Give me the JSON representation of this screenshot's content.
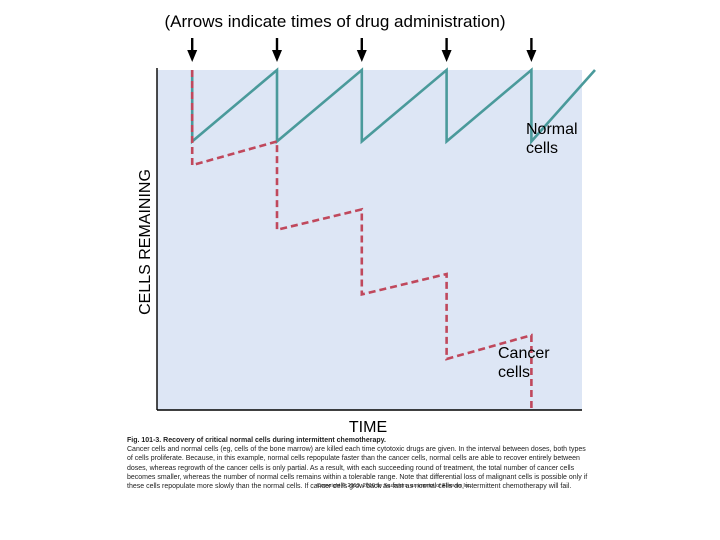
{
  "chart_data": {
    "type": "line",
    "title": "(Arrows indicate times of drug administration)",
    "xlabel": "TIME",
    "ylabel": "CELLS REMAINING",
    "dose_times": [
      0.05,
      0.25,
      0.45,
      0.65,
      0.85
    ],
    "xlim": [
      0,
      1
    ],
    "ylim": [
      0,
      1
    ],
    "grid": false,
    "series": [
      {
        "name": "Normal cells",
        "label_lines": [
          "Normal",
          "cells"
        ],
        "style": "solid",
        "color": "#4a9a9b",
        "x": [
          0.05,
          0.05,
          0.25,
          0.25,
          0.45,
          0.45,
          0.65,
          0.65,
          0.85,
          0.85,
          1.0
        ],
        "y": [
          1.0,
          0.79,
          1.0,
          0.79,
          1.0,
          0.79,
          1.0,
          0.79,
          1.0,
          0.79,
          1.0
        ]
      },
      {
        "name": "Cancer cells",
        "label_lines": [
          "Cancer",
          "cells"
        ],
        "style": "dashed",
        "color": "#c0485c",
        "x": [
          0.05,
          0.05,
          0.25,
          0.25,
          0.45,
          0.45,
          0.65,
          0.65,
          0.85,
          0.85
        ],
        "y": [
          1.0,
          0.72,
          0.79,
          0.53,
          0.59,
          0.34,
          0.4,
          0.15,
          0.22,
          0.0
        ]
      }
    ],
    "colors": {
      "plot_background": "#dde6f5",
      "axis": "#000000",
      "arrow": "#000000"
    }
  },
  "caption": {
    "title": "Fig. 101-3. Recovery of critical normal cells during intermittent chemotherapy.",
    "body": "Cancer cells and normal cells (eg, cells of the bone marrow) are killed each time cytotoxic drugs are given. In the interval between doses, both types of cells proliferate. Because, in this example, normal cells repopulate faster than the cancer cells, normal cells are able to recover entirely between doses, whereas regrowth of the cancer cells is only partial. As a result, with each succeeding round of treatment, the total number of cancer cells becomes smaller, whereas the number of normal cells remains within a tolerable range. Note that differential loss of malignant cells is possible only if these cells repopulate more slowly than the normal cells. If cancer cells grow back as fast as normal cells do, intermittent chemotherapy will fail.",
    "copyright": "Copyright © 2013, 2010 by Saunders, an imprint of Elsevier Inc."
  }
}
